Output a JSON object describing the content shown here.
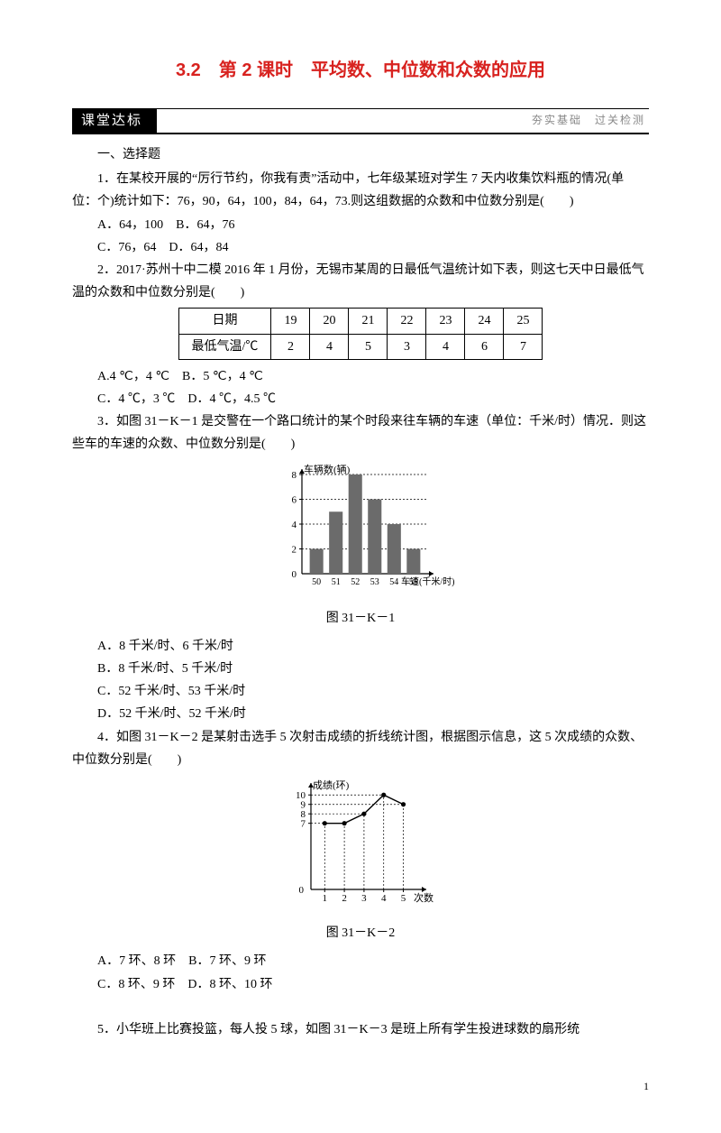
{
  "title": "3.2　第 2 课时　平均数、中位数和众数的应用",
  "banner": {
    "left": "课堂达标",
    "right": "夯实基础　过关检测"
  },
  "sec1": "一、选择题",
  "q1": {
    "text": "1．在某校开展的“厉行节约，你我有责”活动中，七年级某班对学生 7 天内收集饮料瓶的情况(单位：个)统计如下：76，90，64，100，84，64，73.则这组数据的众数和中位数分别是(　　)",
    "a": "A．64，100　B．64，76",
    "c": "C．76，64　D．64，84"
  },
  "q2": {
    "text": "2．2017·苏州十中二模 2016 年 1 月份，无锡市某周的日最低气温统计如下表，则这七天中日最低气温的众数和中位数分别是(　　)",
    "table": {
      "head": [
        "日期",
        "19",
        "20",
        "21",
        "22",
        "23",
        "24",
        "25"
      ],
      "row": [
        "最低气温/℃",
        "2",
        "4",
        "5",
        "3",
        "4",
        "6",
        "7"
      ]
    },
    "a": "A.4 ℃，4 ℃　B．5 ℃，4 ℃",
    "c": "C．4 ℃，3 ℃　D．4 ℃，4.5 ℃"
  },
  "q3": {
    "text": "3．如图 31－K－1 是交警在一个路口统计的某个时段来往车辆的车速（单位：千米/时）情况．则这些车的车速的众数、中位数分别是(　　)",
    "chart": {
      "type": "bar",
      "categories": [
        "50",
        "51",
        "52",
        "53",
        "54",
        "55"
      ],
      "values": [
        2,
        5,
        8,
        6,
        4,
        2
      ],
      "ylim": [
        0,
        8
      ],
      "ytick_step": 2,
      "bar_color": "#6b6b6b",
      "axis_color": "#000",
      "ylabel": "车辆数(辆)",
      "xlabel": "车速(千米/时)",
      "bar_width": 0.7,
      "grid_dash": "2,2"
    },
    "caption": "图 31－K－1",
    "optA": "A．8 千米/时、6 千米/时",
    "optB": "B．8 千米/时、5 千米/时",
    "optC": "C．52 千米/时、53 千米/时",
    "optD": "D．52 千米/时、52 千米/时"
  },
  "q4": {
    "text": "4．如图 31－K－2 是某射击选手 5 次射击成绩的折线统计图，根据图示信息，这 5 次成绩的众数、中位数分别是(　　)",
    "chart": {
      "type": "line",
      "x": [
        1,
        2,
        3,
        4,
        5
      ],
      "y": [
        7,
        7,
        8,
        10,
        9
      ],
      "yticks": [
        7,
        8,
        9,
        10
      ],
      "ylim": [
        0,
        10.5
      ],
      "ylabel": "成绩(环)",
      "xlabel": "次数",
      "marker_color": "#000",
      "line_color": "#000",
      "axis_color": "#000",
      "dash": "2,2"
    },
    "caption": "图 31－K－2",
    "a": "A．7 环、8 环　B．7 环、9 环",
    "c": "C．8 环、9 环　D．8 环、10 环"
  },
  "q5": {
    "text": "5．小华班上比赛投篮，每人投 5 球，如图 31－K－3 是班上所有学生投进球数的扇形统"
  },
  "pagenum": "1"
}
